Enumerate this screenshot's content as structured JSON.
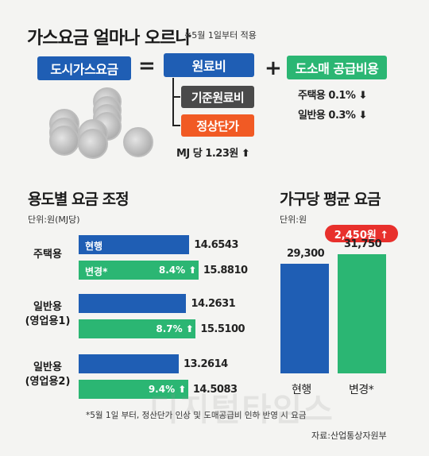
{
  "header": {
    "title": "가스요금 얼마나 오르나",
    "note": "※5월 1일부터 적용"
  },
  "formula": {
    "city_gas": "도시가스요금",
    "equals": "=",
    "raw_cost": "원료비",
    "plus": "+",
    "retail": "도소매 공급비용",
    "base_raw": "기준원료비",
    "settlement": "정상단가",
    "mj_rise": "MJ 당 1.23원",
    "residential_retail": "주택용 0.1%",
    "general_retail": "일반용 0.3%"
  },
  "left_chart": {
    "title": "용도별 요금 조정",
    "unit": "단위:원(MJ당)",
    "current_label": "현행",
    "changed_label": "변경*",
    "footnote": "*5월 1일 부터, 정산단가 인상 및 도매공급비 인하 반영 시 요금"
  },
  "right_chart": {
    "title": "가구당 평균 요금",
    "unit": "단위:원",
    "badge": "2,450원 ↑",
    "current_label": "현행",
    "changed_label": "변경*",
    "current_value_text": "29,300",
    "changed_value_text": "31,750"
  },
  "source": "자료:산업통상자원부",
  "watermark": "디지털타임스",
  "colors": {
    "blue": "#1f5eb4",
    "green": "#2bb673",
    "orange": "#f15a24",
    "dark": "#4a4a4a",
    "red": "#e8302c"
  },
  "chart_data": [
    {
      "type": "bar",
      "title": "용도별 요금 조정",
      "unit": "단위:원(MJ당)",
      "categories": [
        "주택용",
        "일반용\n(영업용1)",
        "일반용\n(영업용2)"
      ],
      "series": [
        {
          "name": "현행",
          "values": [
            14.6543,
            14.2631,
            13.2614
          ],
          "labels": [
            "14.6543",
            "14.2631",
            "13.2614"
          ]
        },
        {
          "name": "변경*",
          "values": [
            15.881,
            15.51,
            14.5083
          ],
          "labels": [
            "15.8810",
            "15.5100",
            "14.5083"
          ]
        }
      ],
      "changes": [
        "8.4%",
        "8.7%",
        "9.4%"
      ]
    },
    {
      "type": "bar",
      "title": "가구당 평균 요금",
      "unit": "단위:원",
      "categories": [
        "현행",
        "변경*"
      ],
      "values": [
        29300,
        31750
      ]
    }
  ]
}
